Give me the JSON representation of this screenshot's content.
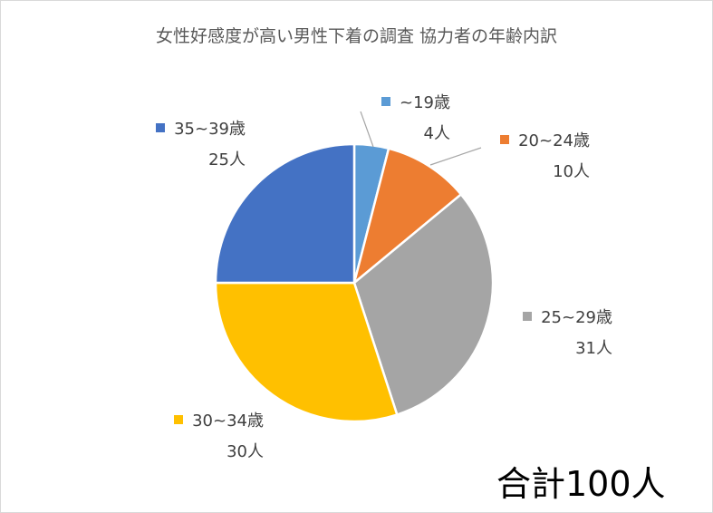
{
  "chart_data": {
    "type": "pie",
    "title": "女性好感度が高い男性下着の調査 協力者の年齢内訳",
    "start_angle_deg": 0,
    "direction": "clockwise",
    "slices": [
      {
        "label": "~19歳",
        "value": 4,
        "value_text": "4人",
        "color": "#5B9BD5"
      },
      {
        "label": "20~24歳",
        "value": 10,
        "value_text": "10人",
        "color": "#ED7D31"
      },
      {
        "label": "25~29歳",
        "value": 31,
        "value_text": "31人",
        "color": "#A5A5A5"
      },
      {
        "label": "30~34歳",
        "value": 30,
        "value_text": "30人",
        "color": "#FFC000"
      },
      {
        "label": "35~39歳",
        "value": 25,
        "value_text": "25人",
        "color": "#4472C4"
      }
    ],
    "annotation": "合計100人"
  }
}
